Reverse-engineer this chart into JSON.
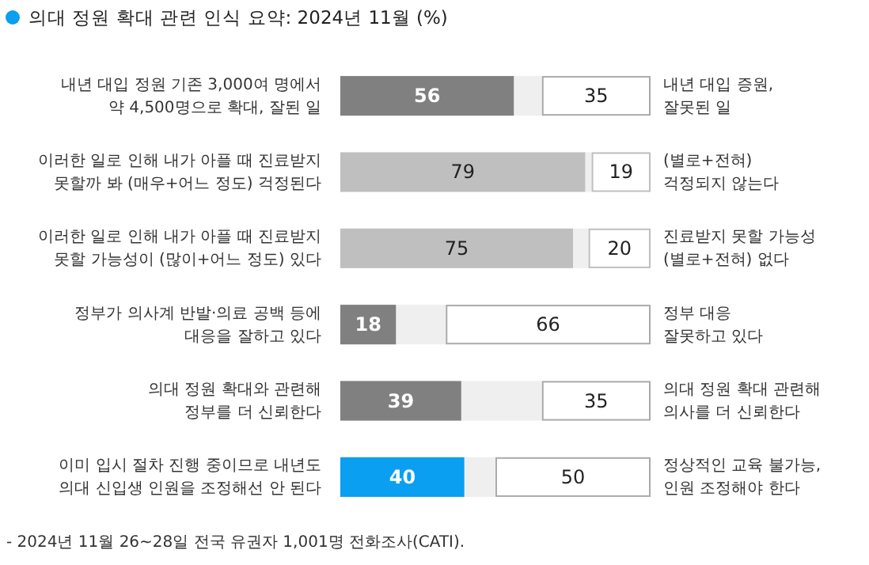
{
  "chart_data": {
    "type": "bar",
    "orientation": "horizontal",
    "stacked": true,
    "title": "의대 정원 확대 관련 인식 요약: 2024년 11월 (%)",
    "categories": [
      "내년 대입 정원 기존 3,000여 명에서\n약 4,500명으로 확대, 잘된 일",
      "이러한 일로 인해 내가 아플 때 진료받지\n못할까 봐 (매우+어느 정도) 걱정된다",
      "이러한 일로 인해 내가 아플 때 진료받지\n못할 가능성이 (많이+어느 정도) 있다",
      "정부가 의사계 반발·의료 공백 등에\n대응을 잘하고 있다",
      "의대 정원 확대와 관련해\n정부를 더 신뢰한다",
      "이미 입시 절차 진행 중이므로 내년도\n의대 신입생 인원을 조정해선 안 된다"
    ],
    "y2_categories": [
      "내년 대입 증원,\n잘못된 일",
      "(별로+전혀)\n걱정되지 않는다",
      "진료받지 못할 가능성\n(별로+전혀) 없다",
      "정부 대응\n잘못하고 있다",
      "의대 정원 확대 관련해\n의사를 더 신뢰한다",
      "정상적인 교육 불가능,\n인원 조정해야 한다"
    ],
    "series": [
      {
        "colors": [
          "#808080",
          "#bfbfbf",
          "#bfbfbf",
          "#808080",
          "#808080",
          "#0a9ff0"
        ],
        "values": [
          56,
          79,
          75,
          18,
          39,
          40
        ],
        "value_labels": [
          "56",
          "79",
          "75",
          "18",
          "39",
          "40"
        ]
      },
      {
        "color": "#efefef",
        "values": [
          9,
          2,
          5,
          16,
          26,
          10
        ],
        "value_labels": [
          null,
          null,
          null,
          null,
          null,
          null
        ]
      },
      {
        "color": "#ffffff",
        "values": [
          35,
          19,
          20,
          66,
          35,
          50
        ],
        "value_labels": [
          "35",
          "19",
          "20",
          "66",
          "35",
          "50"
        ]
      }
    ],
    "xlim": [
      0,
      100
    ],
    "tick_labels": "y",
    "annotations": [
      "- 2024년 11월 26~28일 전국 유권자 1,001명 전화조사(CATI)."
    ]
  }
}
